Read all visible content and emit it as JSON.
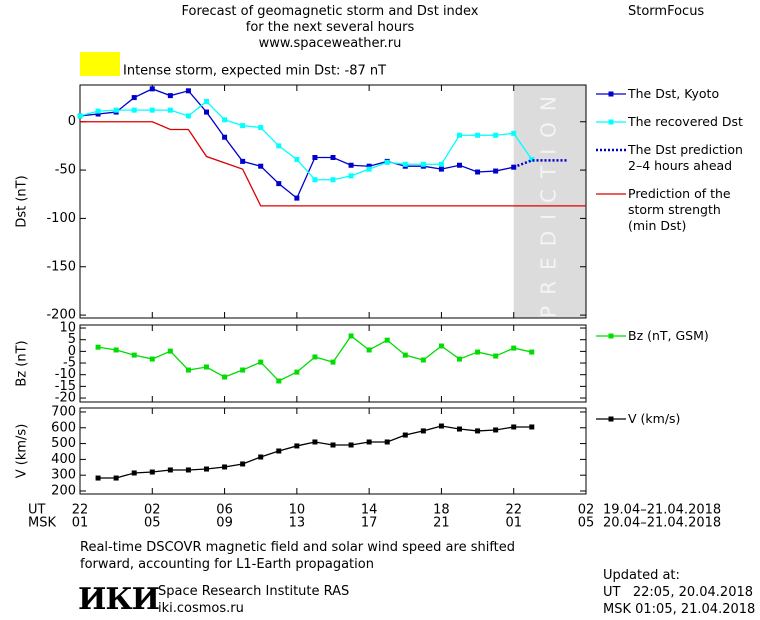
{
  "header": {
    "title_lines": [
      "Forecast of geomagnetic storm and Dst index",
      "for the next several hours",
      "www.spaceweather.ru"
    ],
    "brand": "StormFocus"
  },
  "chart_data": [
    {
      "type": "line",
      "y_label": "Dst (nT)",
      "annotation": "Intense storm, expected min Dst: -87 nT",
      "annotation_color": "#ffff00",
      "xlim": [
        0,
        28
      ],
      "ylim": [
        -203,
        38
      ],
      "yticks": [
        0,
        -50,
        -100,
        -150,
        -200
      ],
      "prediction_region": [
        24,
        28
      ],
      "prediction_text": "PREDICTION",
      "prediction_color": "#dcdcdc",
      "series": [
        {
          "name": "The Dst, Kyoto",
          "color": "#0000cc",
          "marker": "square",
          "x": [
            0,
            1,
            2,
            3,
            4,
            5,
            6,
            7,
            8,
            9,
            10,
            11,
            12,
            13,
            14,
            15,
            16,
            17,
            18,
            19,
            20,
            21,
            22,
            23,
            24
          ],
          "values": [
            6,
            8,
            10,
            25,
            34,
            27,
            32,
            10,
            -16,
            -41,
            -46,
            -64,
            -79,
            -37,
            -37,
            -45,
            -46,
            -41,
            -46,
            -46,
            -49,
            -45,
            -52,
            -51,
            -47
          ]
        },
        {
          "name": "The recovered Dst",
          "color": "#00ffff",
          "marker": "square",
          "x": [
            0,
            1,
            2,
            3,
            4,
            5,
            6,
            7,
            8,
            9,
            10,
            11,
            12,
            13,
            14,
            15,
            16,
            17,
            18,
            19,
            20,
            21,
            22,
            23,
            24,
            25
          ],
          "values": [
            6,
            11,
            12,
            12,
            12,
            12,
            6,
            21,
            2,
            -4,
            -6,
            -25,
            -39,
            -60,
            -60,
            -56,
            -49,
            -42,
            -44,
            -44,
            -44,
            -14,
            -14,
            -14,
            -12,
            -39
          ]
        },
        {
          "name": "The Dst prediction\n2–4 hours ahead",
          "color": "#0000cc",
          "dash": "dotted",
          "x": [
            24,
            25,
            27
          ],
          "values": [
            -47,
            -40,
            -40
          ]
        },
        {
          "name": "Prediction of the\nstorm strength\n(min Dst)",
          "color": "#dd0000",
          "x": [
            0,
            4,
            5,
            6,
            7,
            9,
            10,
            28
          ],
          "values": [
            0,
            0,
            -8,
            -8,
            -36,
            -49,
            -87,
            -87
          ]
        }
      ]
    },
    {
      "type": "line",
      "y_label": "Bz (nT)",
      "xlim": [
        0,
        28
      ],
      "ylim": [
        -21.7,
        11.3
      ],
      "yticks": [
        10,
        5,
        0,
        -5,
        -10,
        -15,
        -20
      ],
      "series": [
        {
          "name": "Bz (nT, GSM)",
          "color": "#00dd00",
          "marker": "square",
          "x": [
            1,
            2,
            3,
            4,
            5,
            6,
            7,
            8,
            9,
            10,
            11,
            12,
            13,
            14,
            15,
            16,
            17,
            18,
            19,
            20,
            21,
            22,
            23,
            24,
            25
          ],
          "values": [
            1.8,
            0.6,
            -1.6,
            -3.3,
            0.1,
            -8,
            -6.7,
            -11,
            -8,
            -4.6,
            -12.7,
            -8.9,
            -2.4,
            -4.6,
            6.6,
            0.6,
            4.8,
            -1.6,
            -3.7,
            2.3,
            -3.3,
            -0.3,
            -2,
            1.4,
            -0.3
          ]
        }
      ]
    },
    {
      "type": "line",
      "y_label": "V (km/s)",
      "xlim": [
        0,
        28
      ],
      "ylim": [
        181,
        725
      ],
      "yticks": [
        200,
        300,
        400,
        500,
        600,
        700
      ],
      "x_label": "UT",
      "x2_label": "MSK",
      "x_range_label": "19.04–21.04.2018",
      "x2_range_label": "20.04–21.04.2018",
      "xticks": [
        {
          "value": 0,
          "label": "22"
        },
        {
          "value": 4,
          "label": "02"
        },
        {
          "value": 8,
          "label": "06"
        },
        {
          "value": 12,
          "label": "10"
        },
        {
          "value": 16,
          "label": "14"
        },
        {
          "value": 20,
          "label": "18"
        },
        {
          "value": 24,
          "label": "22"
        },
        {
          "value": 28,
          "label": "02"
        }
      ],
      "x2ticks": [
        {
          "value": 0,
          "label": "01"
        },
        {
          "value": 4,
          "label": "05"
        },
        {
          "value": 8,
          "label": "09"
        },
        {
          "value": 12,
          "label": "13"
        },
        {
          "value": 16,
          "label": "17"
        },
        {
          "value": 20,
          "label": "21"
        },
        {
          "value": 24,
          "label": "01"
        },
        {
          "value": 28,
          "label": "05"
        }
      ],
      "series": [
        {
          "name": "V (km/s)",
          "color": "#000000",
          "marker": "square",
          "x": [
            1,
            2,
            3,
            4,
            5,
            6,
            7,
            8,
            9,
            10,
            11,
            12,
            13,
            14,
            15,
            16,
            17,
            18,
            19,
            20,
            21,
            22,
            23,
            24,
            25
          ],
          "values": [
            282,
            282,
            314,
            320,
            333,
            333,
            339,
            352,
            371,
            415,
            453,
            485,
            510,
            491,
            491,
            510,
            510,
            554,
            580,
            611,
            592,
            580,
            586,
            605,
            605
          ]
        }
      ]
    }
  ],
  "footer": {
    "note_lines": [
      "Real-time DSCOVR magnetic field and solar wind speed are shifted",
      "forward, accounting for L1-Earth propagation"
    ],
    "logo": "ИКИ",
    "institute": "Space Research Institute RAS",
    "url": "iki.cosmos.ru",
    "updated_label": "Updated at:",
    "updated_ut": "UT   22:05, 20.04.2018",
    "updated_msk": "MSK 01:05, 21.04.2018"
  }
}
